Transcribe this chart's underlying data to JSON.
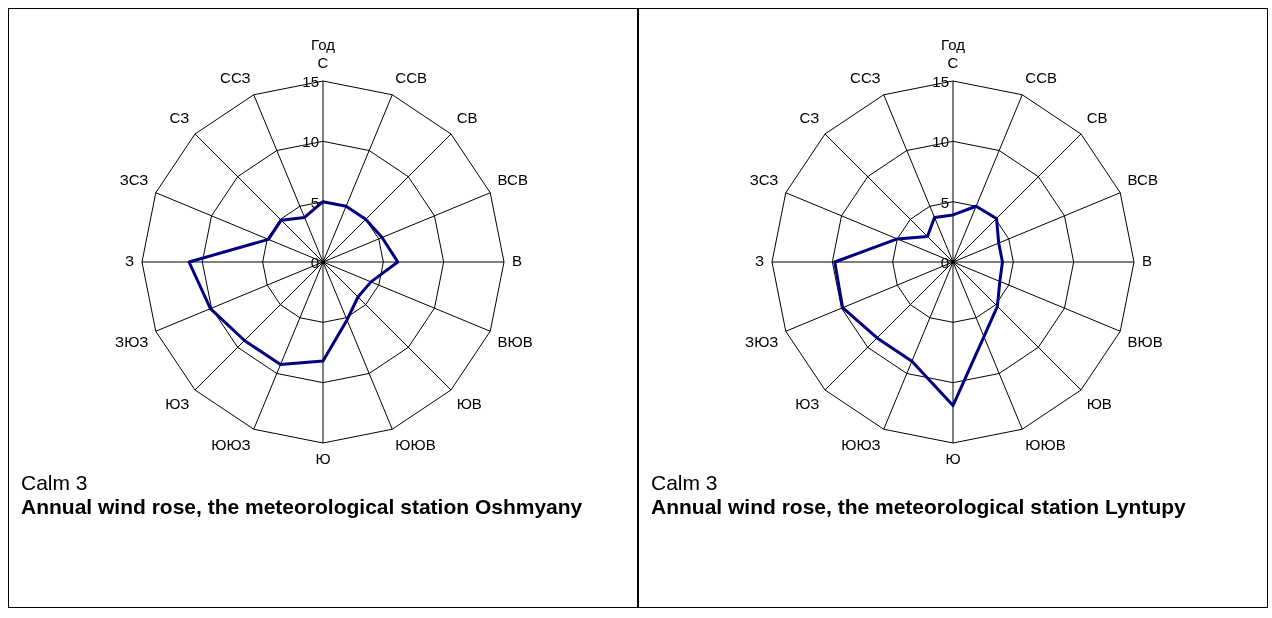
{
  "chart_data": [
    {
      "type": "radar",
      "title": "Год",
      "categories": [
        "С",
        "ССВ",
        "СВ",
        "ВСВ",
        "В",
        "ВЮВ",
        "ЮВ",
        "ЮЮВ",
        "Ю",
        "ЮЮЗ",
        "ЮЗ",
        "ЗЮЗ",
        "З",
        "ЗСЗ",
        "СЗ",
        "ССЗ"
      ],
      "series": [
        {
          "color": "#000080",
          "values": [
            5.0,
            5.0,
            5.0,
            5.3,
            6.2,
            4.3,
            4.1,
            5.2,
            8.2,
            9.2,
            9.2,
            10.1,
            11.1,
            4.9,
            4.9,
            4.0
          ]
        }
      ],
      "ylim": [
        0,
        15
      ],
      "yticks": [
        0,
        5,
        10,
        15
      ],
      "grid": true,
      "legend": false,
      "marker": "none",
      "line_style": "solid",
      "annotations": [
        "Calm 3",
        "Annual wind rose, the meteorological station Oshmyany"
      ]
    },
    {
      "type": "radar",
      "title": "Год",
      "categories": [
        "С",
        "ССВ",
        "СВ",
        "ВСВ",
        "В",
        "ВЮВ",
        "ЮВ",
        "ЮЮВ",
        "Ю",
        "ЮЮЗ",
        "ЮЗ",
        "ЗЮЗ",
        "З",
        "ЗСЗ",
        "СЗ",
        "ССЗ"
      ],
      "series": [
        {
          "color": "#000080",
          "values": [
            3.9,
            5.0,
            5.1,
            4.1,
            4.1,
            4.2,
            5.2,
            6.7,
            11.9,
            8.9,
            8.9,
            9.9,
            9.8,
            5.0,
            3.0,
            4.0
          ]
        }
      ],
      "ylim": [
        0,
        15
      ],
      "yticks": [
        0,
        5,
        10,
        15
      ],
      "grid": true,
      "legend": false,
      "marker": "none",
      "line_style": "solid",
      "annotations": [
        "Calm 3",
        "Annual wind rose, the meteorological station Lyntupy"
      ]
    }
  ]
}
